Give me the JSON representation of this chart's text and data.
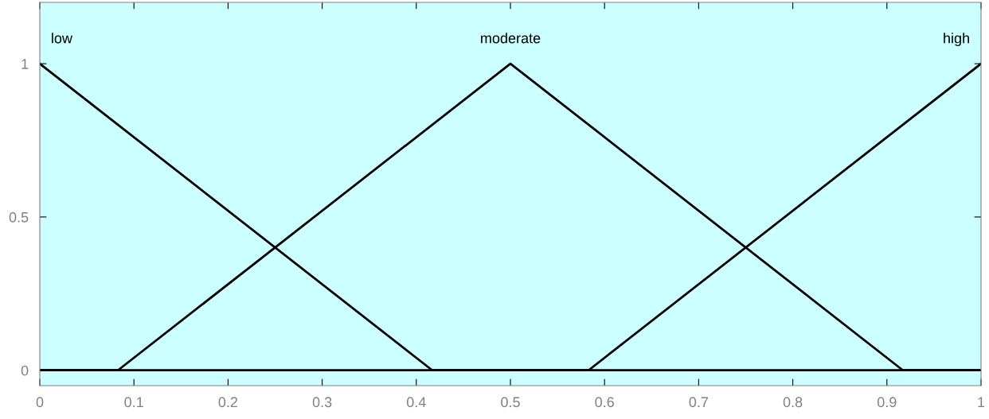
{
  "chart_data": {
    "type": "line",
    "series": [
      {
        "name": "low",
        "color": "#000000",
        "x": [
          0,
          0.417,
          1
        ],
        "values": [
          1,
          0,
          0
        ]
      },
      {
        "name": "moderate",
        "color": "#000000",
        "x": [
          0,
          0.083,
          0.5,
          0.917,
          1
        ],
        "values": [
          0,
          0,
          1,
          0,
          0
        ]
      },
      {
        "name": "high",
        "color": "#000000",
        "x": [
          0,
          0.583,
          1
        ],
        "values": [
          0,
          0,
          1
        ]
      }
    ],
    "xlim": [
      0,
      1
    ],
    "xticks": [
      0,
      0.1,
      0.2,
      0.3,
      0.4,
      0.5,
      0.6,
      0.7,
      0.8,
      0.9,
      1
    ],
    "ylim": [
      -0.05,
      1.2
    ],
    "yticks": [
      0,
      0.5,
      1
    ],
    "grid": false,
    "legend": false,
    "marker": "none",
    "line_style": "solid"
  }
}
